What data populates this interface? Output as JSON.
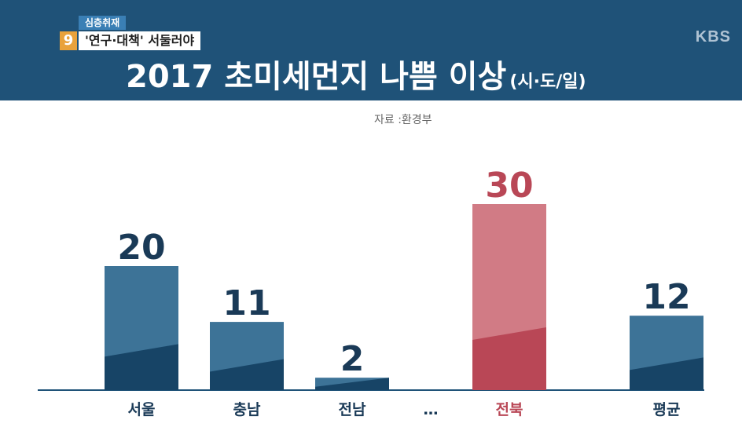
{
  "header": {
    "tag": "심층취재",
    "episode_number": "9",
    "subtitle": "'연구·대책' 서둘러야",
    "logo": "KBS",
    "title": "2017 초미세먼지 나쁨 이상",
    "title_unit": "(시·도/일)"
  },
  "source": "자료 :환경부",
  "colors": {
    "header_bg": "#1f5278",
    "bar_top": "#3d7397",
    "bar_bottom": "#174466",
    "highlight_top": "#d17b85",
    "highlight_bottom": "#b94756",
    "value_text": "#1a3a57",
    "highlight_text": "#b94756",
    "baseline": "#1f5278"
  },
  "chart_data": {
    "type": "bar",
    "title": "2017 초미세먼지 나쁨 이상",
    "ylabel": "(시·도/일)",
    "categories": [
      "서울",
      "충남",
      "전남",
      "…",
      "전북",
      "평균"
    ],
    "values": [
      20,
      11,
      2,
      null,
      30,
      12
    ],
    "highlight": [
      "전북"
    ],
    "ylim": [
      0,
      30
    ],
    "grid": false,
    "legend": "none"
  }
}
